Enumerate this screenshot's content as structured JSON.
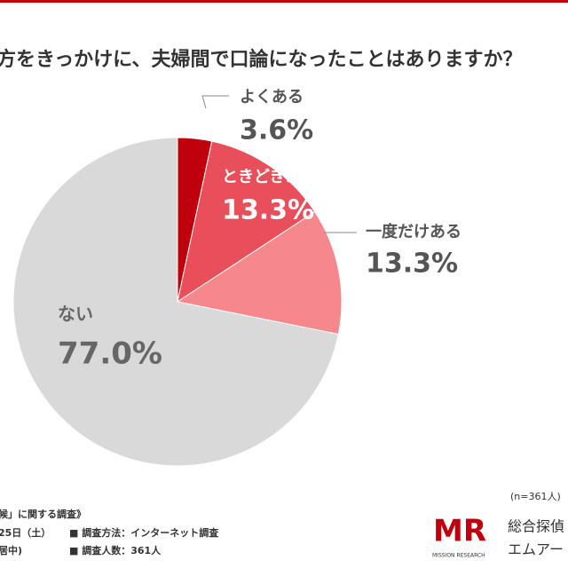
{
  "chart_data": {
    "type": "pie",
    "title": "方をきっかけに、夫婦間で口論になったことはありますか？",
    "categories": [
      "よくある",
      "ときどきある",
      "一度だけある",
      "ない"
    ],
    "values": [
      3.6,
      13.3,
      13.3,
      77.0
    ],
    "value_labels": [
      "3.6%",
      "13.3%",
      "13.3%",
      "77.0%"
    ],
    "colors": [
      "#c1000e",
      "#e84f5a",
      "#f5878d",
      "#d9d9d9"
    ],
    "note": "(n=361人)"
  },
  "footer": {
    "survey": "候」に関する調査》",
    "date": "25日（土）",
    "method": "■ 調査方法：インターネット調査",
    "area": "居中)",
    "count": "■ 調査人数：361人",
    "logo": "MR",
    "logo_sub": "MISSION RESEARCH",
    "company1": "総合探偵",
    "company2": "エムアー"
  }
}
